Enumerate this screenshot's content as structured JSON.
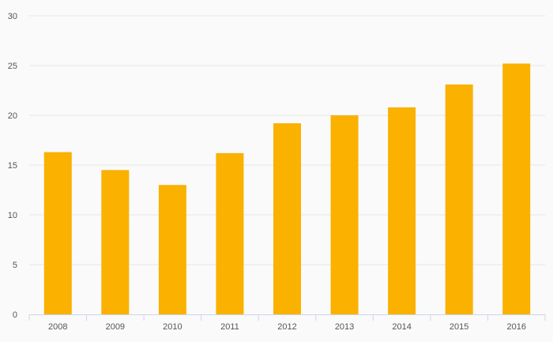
{
  "chart_data": {
    "type": "bar",
    "title": "",
    "xlabel": "",
    "ylabel": "",
    "categories": [
      "2008",
      "2009",
      "2010",
      "2011",
      "2012",
      "2013",
      "2014",
      "2015",
      "2016"
    ],
    "values": [
      16.3,
      14.5,
      13.0,
      16.2,
      19.2,
      20.0,
      20.8,
      23.1,
      25.2
    ],
    "ylim": [
      0,
      30
    ],
    "yticks": [
      "0",
      "5",
      "10",
      "15",
      "20",
      "25",
      "30"
    ],
    "grid": "horizontal",
    "legend": "none",
    "bar_color": "#fab100",
    "grid_color": "#e6e6e6",
    "axis_color": "#ccd6eb"
  }
}
